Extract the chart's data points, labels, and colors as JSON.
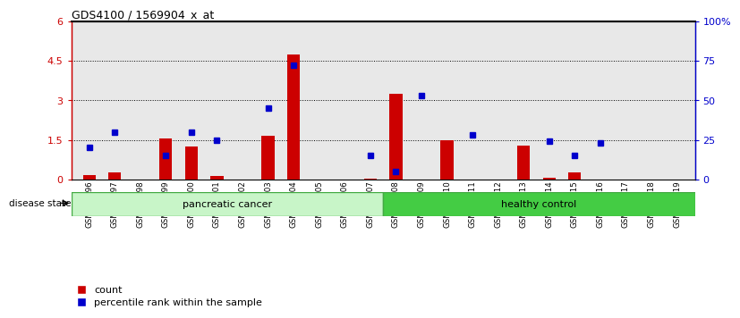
{
  "title": "GDS4100 / 1569904_x_at",
  "samples": [
    "GSM356796",
    "GSM356797",
    "GSM356798",
    "GSM356799",
    "GSM356800",
    "GSM356801",
    "GSM356802",
    "GSM356803",
    "GSM356804",
    "GSM356805",
    "GSM356806",
    "GSM356807",
    "GSM356808",
    "GSM356809",
    "GSM356810",
    "GSM356811",
    "GSM356812",
    "GSM356813",
    "GSM356814",
    "GSM356815",
    "GSM356816",
    "GSM356817",
    "GSM356818",
    "GSM356819"
  ],
  "red_bars": [
    0.15,
    0.25,
    0.0,
    1.55,
    1.25,
    0.12,
    0.0,
    1.65,
    4.75,
    0.0,
    0.0,
    0.04,
    3.25,
    0.0,
    1.5,
    0.0,
    0.0,
    1.3,
    0.07,
    0.25,
    0.0,
    0.0,
    0.0,
    0.0
  ],
  "blue_dots_pct": [
    20,
    30,
    0,
    15,
    30,
    25,
    0,
    45,
    72,
    0,
    0,
    15,
    5,
    53,
    0,
    28,
    0,
    0,
    24,
    15,
    23,
    0,
    0,
    0
  ],
  "group_labels": [
    "pancreatic cancer",
    "healthy control"
  ],
  "pc_count": 12,
  "hc_count": 12,
  "light_green": "#c8f5c8",
  "dark_green": "#44cc44",
  "ylim_left": [
    0,
    6
  ],
  "ylim_right": [
    0,
    100
  ],
  "yticks_left": [
    0,
    1.5,
    3.0,
    4.5,
    6.0
  ],
  "ytick_labels_left": [
    "0",
    "1.5",
    "3",
    "4.5",
    "6"
  ],
  "yticks_right": [
    0,
    25,
    50,
    75,
    100
  ],
  "ytick_labels_right": [
    "0",
    "25",
    "50",
    "75",
    "100%"
  ],
  "red_color": "#cc0000",
  "blue_color": "#0000cc",
  "plot_bg": "#e8e8e8",
  "label_count": "count",
  "label_pct": "percentile rank within the sample",
  "disease_state_label": "disease state"
}
